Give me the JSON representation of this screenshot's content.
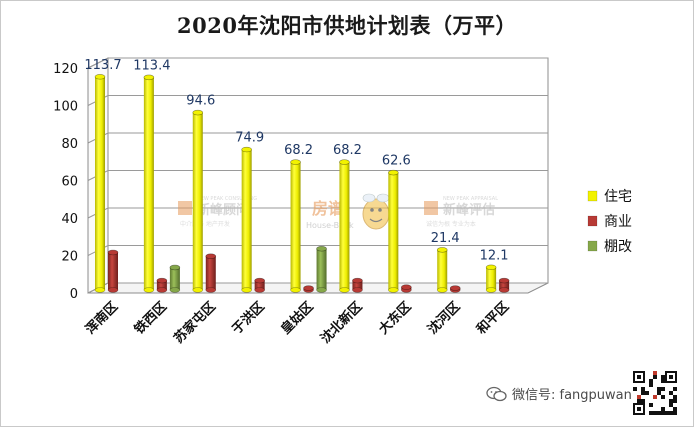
{
  "chart_data": {
    "type": "bar",
    "title": "2020年沈阳市供地计划表（万平）",
    "categories": [
      "浑南区",
      "铁西区",
      "苏家屯区",
      "于洪区",
      "皇姑区",
      "沈北新区",
      "大东区",
      "沈河区",
      "和平区"
    ],
    "series": [
      {
        "name": "住宅",
        "color": "#f2f200",
        "values": [
          113.7,
          113.4,
          94.6,
          74.9,
          68.2,
          68.2,
          62.6,
          21.4,
          12.1
        ],
        "labels": [
          "113.7",
          "113.4",
          "94.6",
          "74.9",
          "68.2",
          "68.2",
          "62.6",
          "21.4",
          "12.1"
        ]
      },
      {
        "name": "商业",
        "color": "#b83a35",
        "values": [
          20,
          5,
          18,
          5,
          1,
          5,
          1.5,
          1,
          5
        ]
      },
      {
        "name": "棚改",
        "color": "#86a84a",
        "values": [
          0,
          12,
          0,
          0,
          22,
          0,
          0,
          0,
          0
        ]
      }
    ],
    "ylim": [
      0,
      120
    ],
    "yticks": [
      "0",
      "20",
      "40",
      "60",
      "80",
      "100",
      "120"
    ],
    "grid": true,
    "legend_position": "right"
  },
  "watermarks": {
    "logo1_cn": "新峰顾问",
    "logo1_en": "NEW PEAK CONSULTING",
    "logo1_sub": "中介服务 地产开发",
    "logo2_cn": "房谱",
    "logo2_en": "House-Book",
    "logo3_cn": "新峰评估",
    "logo3_en": "NEW PEAK APPRAISAL",
    "logo3_sub": "诚信为根 专业为本",
    "wechat": "微信号: fangpuwang"
  }
}
